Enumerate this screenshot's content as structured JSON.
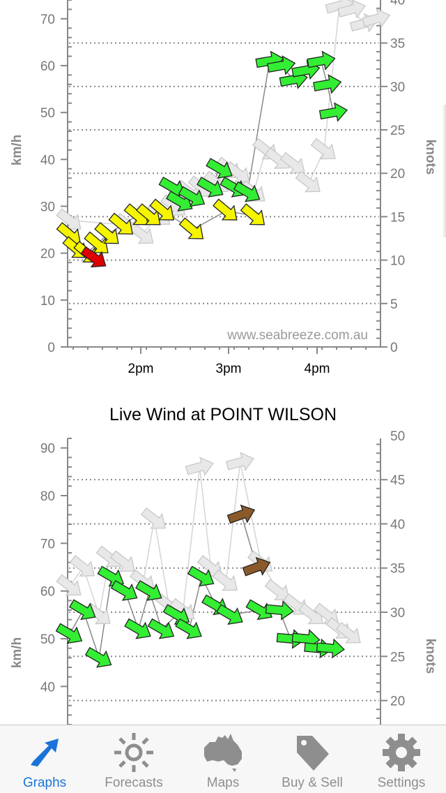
{
  "charts": [
    {
      "title": "",
      "watermark": "www.seabreeze.com.au",
      "y_left_label": "km/h",
      "y_right_label": "knots",
      "y_left_ticks": [
        "0",
        "10",
        "20",
        "30",
        "40",
        "50",
        "60",
        "70"
      ],
      "y_right_ticks": [
        "0",
        "5",
        "10",
        "15",
        "20",
        "25",
        "30",
        "35",
        "40"
      ],
      "x_ticks": [
        "2pm",
        "3pm",
        "4pm"
      ]
    },
    {
      "title": "Live Wind at POINT WILSON",
      "y_left_label": "km/h",
      "y_right_label": "knots",
      "y_left_ticks": [
        "40",
        "50",
        "60",
        "70",
        "80",
        "90"
      ],
      "y_right_ticks": [
        "20",
        "25",
        "30",
        "35",
        "40",
        "45",
        "50"
      ]
    }
  ],
  "chart_data": [
    {
      "type": "scatter",
      "title": "",
      "ylabel": "km/h",
      "y2label": "knots",
      "ylim": [
        0,
        74
      ],
      "x_ticks": [
        "2pm",
        "3pm",
        "4pm"
      ],
      "series": [
        {
          "name": "",
          "color": "#e8e8e8",
          "points": [
            [
              0,
              27
            ],
            [
              95,
              26
            ],
            [
              118,
              24
            ],
            [
              145,
              28
            ],
            [
              170,
              30
            ],
            [
              195,
              33
            ],
            [
              215,
              34
            ],
            [
              240,
              35
            ],
            [
              260,
              38
            ],
            [
              275,
              37
            ],
            [
              300,
              33
            ],
            [
              320,
              42
            ],
            [
              340,
              40
            ],
            [
              365,
              39
            ],
            [
              390,
              35
            ],
            [
              415,
              42
            ],
            [
              440,
              73
            ],
            [
              460,
              72
            ],
            [
              480,
              69
            ],
            [
              500,
              70
            ]
          ]
        },
        {
          "name": "",
          "color": "#f5f500",
          "points": [
            [
              0,
              24
            ],
            [
              10,
              21
            ],
            [
              28,
              20
            ],
            [
              45,
              22
            ],
            [
              62,
              24
            ],
            [
              85,
              26
            ],
            [
              110,
              28
            ],
            [
              130,
              28
            ],
            [
              152,
              29
            ],
            [
              200,
              25
            ],
            [
              255,
              29
            ],
            [
              300,
              28
            ]
          ]
        },
        {
          "name": "",
          "color": "#e00000",
          "points": [
            [
              40,
              19
            ]
          ]
        },
        {
          "name": "",
          "color": "#33ee33",
          "points": [
            [
              168,
              34
            ],
            [
              180,
              31
            ],
            [
              200,
              32
            ],
            [
              230,
              34
            ],
            [
              245,
              38
            ],
            [
              268,
              34
            ],
            [
              290,
              33
            ],
            [
              326,
              61
            ],
            [
              345,
              60
            ],
            [
              365,
              57
            ],
            [
              385,
              59
            ],
            [
              410,
              61
            ],
            [
              420,
              56
            ],
            [
              430,
              50
            ]
          ]
        }
      ]
    },
    {
      "type": "scatter",
      "title": "Live Wind at POINT WILSON",
      "ylabel": "km/h",
      "y2label": "knots",
      "ylim": [
        32,
        92
      ],
      "series": [
        {
          "name": "",
          "color": "#e8e8e8",
          "points": [
            [
              0,
              61
            ],
            [
              22,
              65
            ],
            [
              48,
              55
            ],
            [
              65,
              67
            ],
            [
              88,
              66
            ],
            [
              120,
              62
            ],
            [
              138,
              75
            ],
            [
              162,
              57
            ],
            [
              185,
              56
            ],
            [
              212,
              86
            ],
            [
              230,
              65
            ],
            [
              255,
              62
            ],
            [
              278,
              87
            ],
            [
              312,
              66
            ],
            [
              340,
              60
            ],
            [
              370,
              57
            ],
            [
              395,
              55
            ],
            [
              420,
              55
            ],
            [
              440,
              52
            ],
            [
              456,
              51
            ]
          ]
        },
        {
          "name": "",
          "color": "#33ee33",
          "points": [
            [
              0,
              51
            ],
            [
              22,
              56
            ],
            [
              48,
              46
            ],
            [
              68,
              63
            ],
            [
              90,
              60
            ],
            [
              112,
              52
            ],
            [
              130,
              60
            ],
            [
              150,
              52
            ],
            [
              175,
              55
            ],
            [
              195,
              52
            ],
            [
              215,
              63
            ],
            [
              238,
              57
            ],
            [
              262,
              55
            ],
            [
              310,
              56
            ],
            [
              342,
              56
            ],
            [
              360,
              50
            ],
            [
              385,
              50
            ],
            [
              405,
              48
            ],
            [
              425,
              48
            ]
          ]
        },
        {
          "name": "",
          "color": "#8b5a2b",
          "points": [
            [
              280,
              76
            ],
            [
              305,
              65
            ]
          ]
        }
      ]
    }
  ],
  "tabbar": {
    "items": [
      {
        "label": "Graphs",
        "icon": "graph-arrow-icon",
        "active": true
      },
      {
        "label": "Forecasts",
        "icon": "sun-icon",
        "active": false
      },
      {
        "label": "Maps",
        "icon": "australia-map-icon",
        "active": false
      },
      {
        "label": "Buy & Sell",
        "icon": "price-tag-icon",
        "active": false
      },
      {
        "label": "Settings",
        "icon": "gear-icon",
        "active": false
      }
    ],
    "active_color": "#1a73d9",
    "inactive_color": "#8e8e8e"
  },
  "colors": {
    "grey_arrow": "#e8e8e8",
    "yellow_arrow": "#f5f500",
    "green_arrow": "#33ee33",
    "red_arrow": "#e00000",
    "brown_arrow": "#8b5a2b",
    "axis": "#888888",
    "grid": "#999999"
  }
}
